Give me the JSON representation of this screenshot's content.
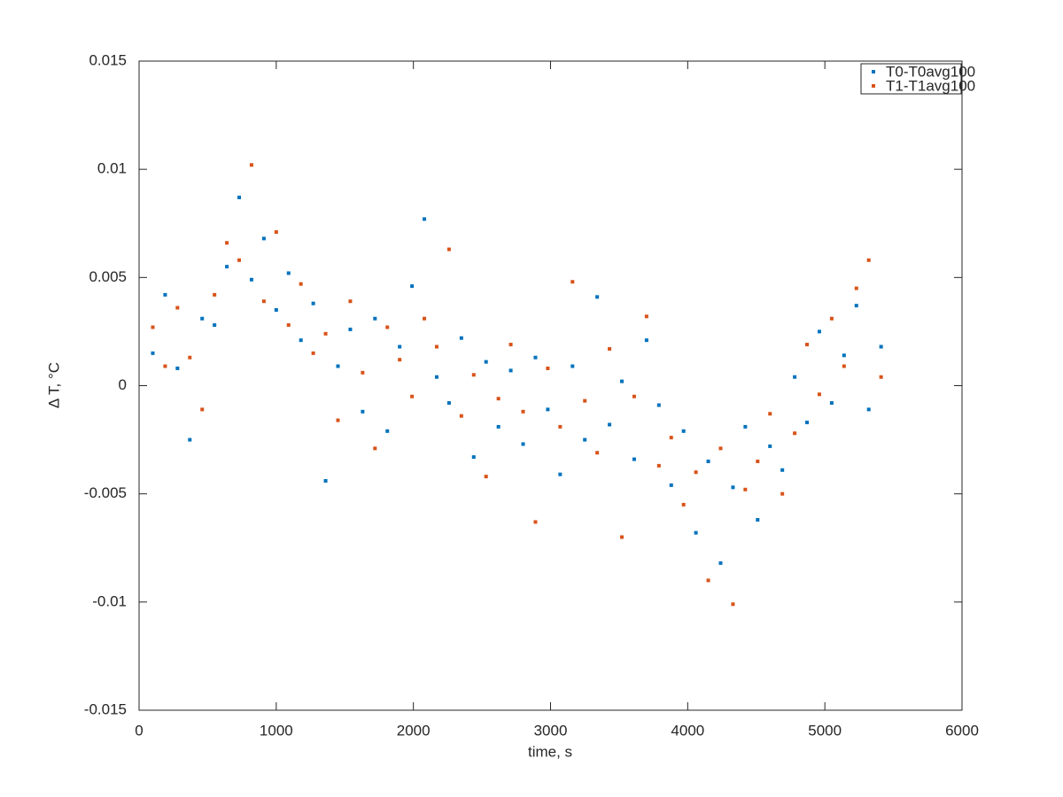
{
  "chart_data": {
    "type": "scatter",
    "xlabel": "time, s",
    "ylabel": "Δ T, °C",
    "xlim": [
      0,
      6000
    ],
    "xticks": [
      0,
      1000,
      2000,
      3000,
      4000,
      5000,
      6000
    ],
    "ylim": [
      -0.015,
      0.015
    ],
    "yticks": [
      -0.015,
      -0.01,
      -0.005,
      0,
      0.005,
      0.01,
      0.015
    ],
    "grid": false,
    "legend": "top-right",
    "x": [
      100,
      190,
      280,
      370,
      460,
      550,
      640,
      730,
      820,
      910,
      1000,
      1090,
      1180,
      1270,
      1360,
      1450,
      1540,
      1630,
      1720,
      1810,
      1900,
      1990,
      2080,
      2170,
      2260,
      2350,
      2440,
      2530,
      2620,
      2710,
      2800,
      2890,
      2980,
      3070,
      3160,
      3250,
      3340,
      3430,
      3520,
      3610,
      3700,
      3790,
      3880,
      3970,
      4060,
      4150,
      4240,
      4330,
      4420,
      4510,
      4600,
      4690,
      4780,
      4870,
      4960,
      5050,
      5140,
      5230,
      5320,
      5410
    ],
    "series": [
      {
        "name": "T0-T0avg100",
        "color": "#0072bd",
        "values": [
          0.0015,
          0.0042,
          0.0008,
          -0.0025,
          0.0031,
          0.0028,
          0.0055,
          0.0087,
          0.0049,
          0.0068,
          0.0035,
          0.0052,
          0.0021,
          0.0038,
          -0.0044,
          0.0009,
          0.0026,
          -0.0012,
          0.0031,
          -0.0021,
          0.0018,
          0.0046,
          0.0077,
          0.0004,
          -0.0008,
          0.0022,
          -0.0033,
          0.0011,
          -0.0019,
          0.0007,
          -0.0027,
          0.0013,
          -0.0011,
          -0.0041,
          0.0009,
          -0.0025,
          0.0041,
          -0.0018,
          0.0002,
          -0.0034,
          0.0021,
          -0.0009,
          -0.0046,
          -0.0021,
          -0.0068,
          -0.0035,
          -0.0082,
          -0.0047,
          -0.0019,
          -0.0062,
          -0.0028,
          -0.0039,
          0.0004,
          -0.0017,
          0.0025,
          -0.0008,
          0.0014,
          0.0037,
          -0.0011,
          0.0018
        ]
      },
      {
        "name": "T1-T1avg100",
        "color": "#d95319",
        "values": [
          0.0027,
          0.0009,
          0.0036,
          0.0013,
          -0.0011,
          0.0042,
          0.0066,
          0.0058,
          0.0102,
          0.0039,
          0.0071,
          0.0028,
          0.0047,
          0.0015,
          0.0024,
          -0.0016,
          0.0039,
          0.0006,
          -0.0029,
          0.0027,
          0.0012,
          -0.0005,
          0.0031,
          0.0018,
          0.0063,
          -0.0014,
          0.0005,
          -0.0042,
          -0.0006,
          0.0019,
          -0.0012,
          -0.0063,
          0.0008,
          -0.0019,
          0.0048,
          -0.0007,
          -0.0031,
          0.0017,
          -0.007,
          -0.0005,
          0.0032,
          -0.0037,
          -0.0024,
          -0.0055,
          -0.004,
          -0.009,
          -0.0029,
          -0.0101,
          -0.0048,
          -0.0035,
          -0.0013,
          -0.005,
          -0.0022,
          0.0019,
          -0.0004,
          0.0031,
          0.0009,
          0.0045,
          0.0058,
          0.0004
        ]
      }
    ]
  }
}
